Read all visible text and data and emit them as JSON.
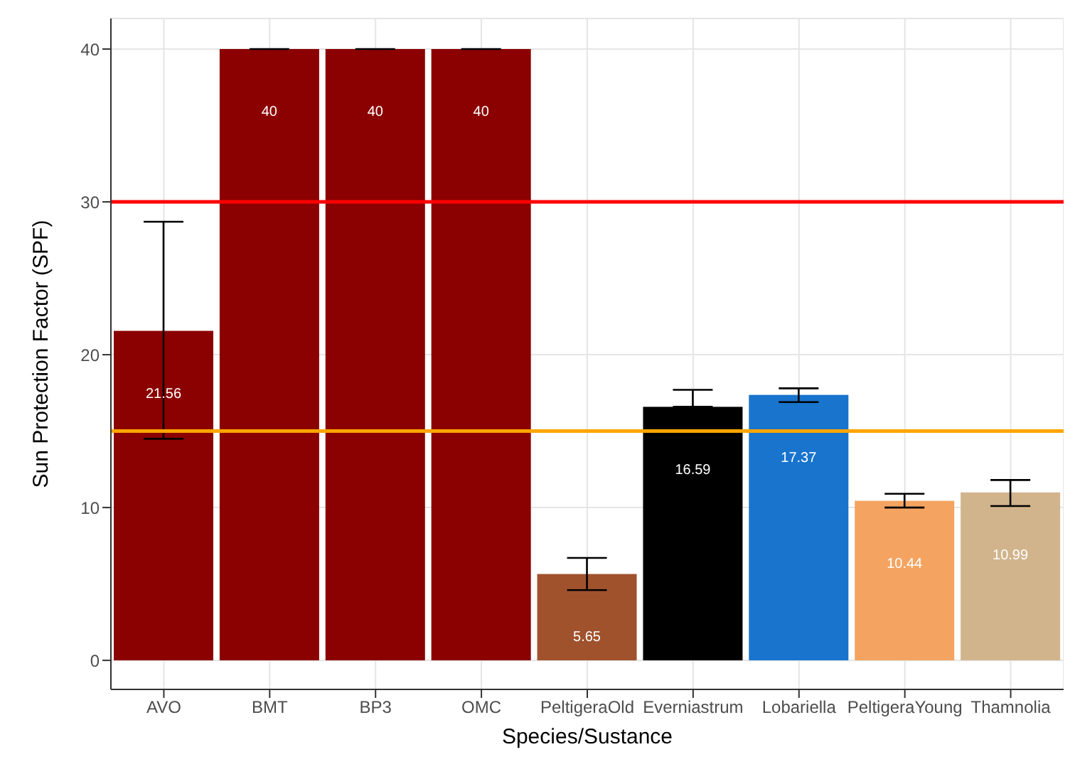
{
  "chart_data": {
    "type": "bar",
    "xlabel": "Species/Sustance",
    "ylabel": "Sun Protection Factor (SPF)",
    "categories": [
      "AVO",
      "BMT",
      "BP3",
      "OMC",
      "PeltigeraOld",
      "Everniastrum",
      "Lobariella",
      "PeltigeraYoung",
      "Thamnolia"
    ],
    "values": [
      21.56,
      40,
      40,
      40,
      5.65,
      16.59,
      17.37,
      10.44,
      10.99
    ],
    "colors": [
      "#8b0000",
      "#8b0000",
      "#8b0000",
      "#8b0000",
      "#a0522d",
      "#000000",
      "#1874cd",
      "#f4a460",
      "#d2b48c"
    ],
    "errors": [
      [
        14.5,
        28.7
      ],
      [
        40,
        40
      ],
      [
        40,
        40
      ],
      [
        40,
        40
      ],
      [
        4.6,
        6.7
      ],
      [
        16.59,
        17.7
      ],
      [
        16.9,
        17.8
      ],
      [
        10.0,
        10.9
      ],
      [
        10.1,
        11.8
      ]
    ],
    "data_labels": true,
    "ylim": [
      -1.9,
      42
    ],
    "yticks": [
      0,
      10,
      20,
      30,
      40
    ],
    "grid": true,
    "ref_lines": [
      {
        "axis": "y",
        "value": 30,
        "color": "#ff0000"
      },
      {
        "axis": "y",
        "value": 15,
        "color": "#ffa500"
      }
    ]
  }
}
